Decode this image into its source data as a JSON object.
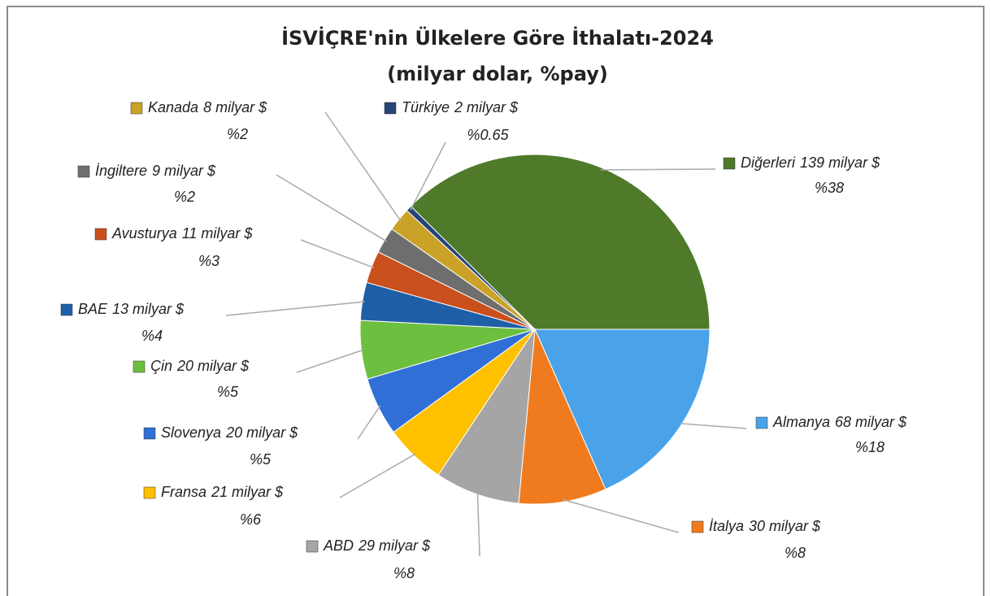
{
  "chart_data": {
    "type": "pie",
    "title": "İSVİÇRE'nin Ülkelere Göre İthalatı-2024",
    "subtitle": "(milyar dolar, %pay)",
    "categories": [
      "Diğerleri",
      "Almanya",
      "İtalya",
      "ABD",
      "Fransa",
      "Slovenya",
      "Çin",
      "BAE",
      "Avusturya",
      "İngiltere",
      "Kanada",
      "Türkiye"
    ],
    "values": [
      139,
      68,
      30,
      29,
      21,
      20,
      20,
      13,
      11,
      9,
      8,
      2
    ],
    "value_labels": [
      "139 milyar $",
      "68 milyar $",
      "30 milyar $",
      "29 milyar $",
      "21 milyar $",
      "20 milyar $",
      "20 milyar $",
      "13 milyar $",
      "11 milyar $",
      "9 milyar $",
      "8 milyar $",
      "2 milyar $"
    ],
    "percents": [
      38,
      18,
      8,
      8,
      6,
      5,
      5,
      4,
      3,
      2,
      2,
      0.65
    ],
    "percent_labels": [
      "%38",
      "%18",
      "%8",
      "%8",
      "%6",
      "%5",
      "%5",
      "%4",
      "%3",
      "%2",
      "%2",
      "%0.65"
    ],
    "colors": [
      "#4e7a2a",
      "#4aa3e8",
      "#f07b1e",
      "#a5a5a5",
      "#ffc000",
      "#2f6fd6",
      "#6dbf3f",
      "#1f5fa8",
      "#c9501c",
      "#6e6e6e",
      "#c9a227",
      "#264478"
    ]
  }
}
